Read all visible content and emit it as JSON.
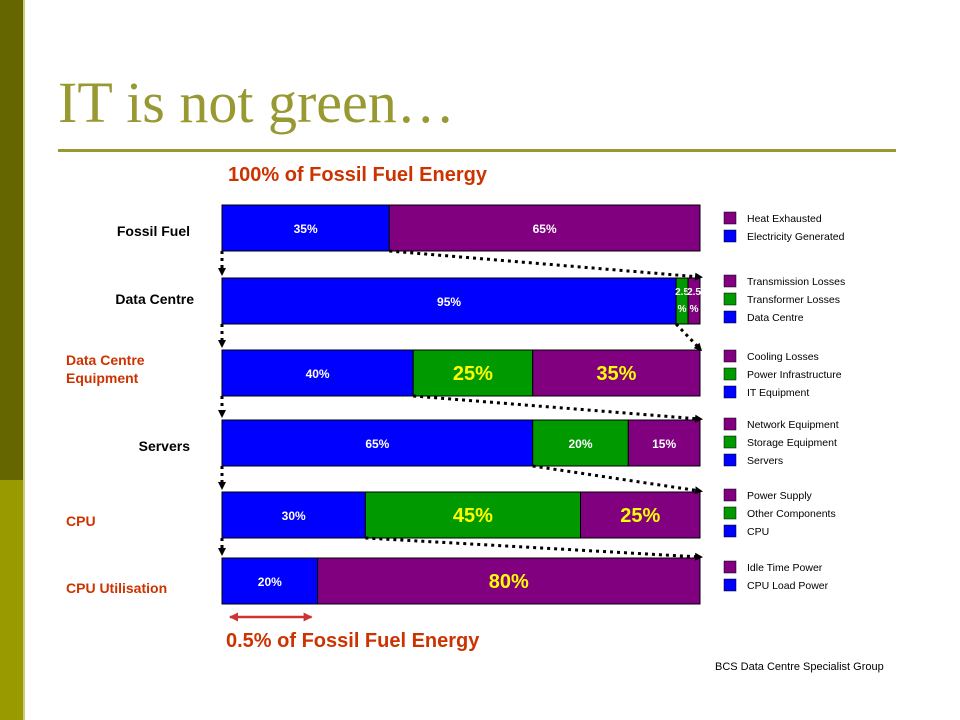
{
  "slide": {
    "title": "IT is not green…",
    "top_caption": "100% of Fossil Fuel Energy",
    "bottom_caption": "0.5% of Fossil Fuel Energy",
    "source": "BCS Data Centre Specialist Group"
  },
  "colors": {
    "blue": "#0000ff",
    "green": "#009900",
    "purple": "#800080",
    "title": "#999933",
    "accent_text": "#cc3300",
    "arrow": "#cc3333",
    "sidebar_dark": "#666600",
    "sidebar_light": "#999900"
  },
  "chart_data": {
    "type": "bar",
    "orientation": "horizontal",
    "stacked": true,
    "scale": "percent of each row",
    "grid": false,
    "legend_placement": "right of each bar",
    "rows": [
      {
        "label": "Fossil Fuel",
        "label_color": "#000000",
        "segments": [
          {
            "label": "35%",
            "value": 35,
            "color": "#0000ff",
            "text_size": "small"
          },
          {
            "label": "65%",
            "value": 65,
            "color": "#800080",
            "text_size": "small"
          }
        ],
        "legend": [
          {
            "name": "Heat Exhausted",
            "color": "#800080"
          },
          {
            "name": "Electricity Generated",
            "color": "#0000ff"
          }
        ]
      },
      {
        "label": "Data Centre",
        "label_color": "#000000",
        "segments": [
          {
            "label": "95%",
            "value": 95,
            "color": "#0000ff",
            "text_size": "small"
          },
          {
            "label": "2.5 %",
            "value": 2.5,
            "color": "#009900",
            "text_size": "tiny"
          },
          {
            "label": "2.5 %",
            "value": 2.5,
            "color": "#800080",
            "text_size": "tiny"
          }
        ],
        "legend": [
          {
            "name": "Transmission Losses",
            "color": "#800080"
          },
          {
            "name": "Transformer Losses",
            "color": "#009900"
          },
          {
            "name": "Data Centre",
            "color": "#0000ff"
          }
        ]
      },
      {
        "label": "Data Centre Equipment",
        "label_color": "#cc3300",
        "segments": [
          {
            "label": "40%",
            "value": 40,
            "color": "#0000ff",
            "text_size": "small"
          },
          {
            "label": "25%",
            "value": 25,
            "color": "#009900",
            "text_size": "large"
          },
          {
            "label": "35%",
            "value": 35,
            "color": "#800080",
            "text_size": "large"
          }
        ],
        "legend": [
          {
            "name": "Cooling Losses",
            "color": "#800080"
          },
          {
            "name": "Power Infrastructure",
            "color": "#009900"
          },
          {
            "name": "IT Equipment",
            "color": "#0000ff"
          }
        ]
      },
      {
        "label": "Servers",
        "label_color": "#000000",
        "segments": [
          {
            "label": "65%",
            "value": 65,
            "color": "#0000ff",
            "text_size": "small"
          },
          {
            "label": "20%",
            "value": 20,
            "color": "#009900",
            "text_size": "small"
          },
          {
            "label": "15%",
            "value": 15,
            "color": "#800080",
            "text_size": "small"
          }
        ],
        "legend": [
          {
            "name": "Network Equipment",
            "color": "#800080"
          },
          {
            "name": "Storage Equipment",
            "color": "#009900"
          },
          {
            "name": "Servers",
            "color": "#0000ff"
          }
        ]
      },
      {
        "label": "CPU",
        "label_color": "#cc3300",
        "segments": [
          {
            "label": "30%",
            "value": 30,
            "color": "#0000ff",
            "text_size": "small"
          },
          {
            "label": "45%",
            "value": 45,
            "color": "#009900",
            "text_size": "large"
          },
          {
            "label": "25%",
            "value": 25,
            "color": "#800080",
            "text_size": "large"
          }
        ],
        "legend": [
          {
            "name": "Power Supply",
            "color": "#800080"
          },
          {
            "name": "Other Components",
            "color": "#009900"
          },
          {
            "name": "CPU",
            "color": "#0000ff"
          }
        ]
      },
      {
        "label": "CPU Utilisation",
        "label_color": "#cc3300",
        "segments": [
          {
            "label": "20%",
            "value": 20,
            "color": "#0000ff",
            "text_size": "small"
          },
          {
            "label": "80%",
            "value": 80,
            "color": "#800080",
            "text_size": "large"
          }
        ],
        "legend": [
          {
            "name": "Idle Time Power",
            "color": "#800080"
          },
          {
            "name": "CPU Load Power",
            "color": "#0000ff"
          }
        ]
      }
    ]
  }
}
